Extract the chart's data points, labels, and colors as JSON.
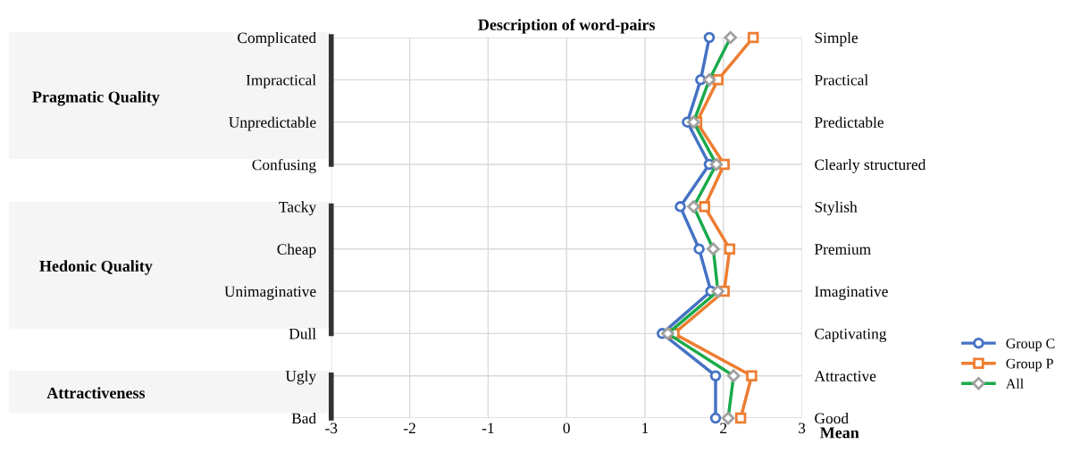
{
  "chart_data": {
    "type": "line",
    "orientation": "horizontal",
    "title": "Description of word-pairs",
    "xlabel": "Mean",
    "categories": [
      "Complicated",
      "Impractical",
      "Unpredictable",
      "Confusing",
      "Tacky",
      "Cheap",
      "Unimaginative",
      "Dull",
      "Ugly",
      "Bad"
    ],
    "y2_categories": [
      "Simple",
      "Practical",
      "Predictable",
      "Clearly structured",
      "Stylish",
      "Premium",
      "Imaginative",
      "Captivating",
      "Attractive",
      "Good"
    ],
    "series": [
      {
        "name": "Group C",
        "color": "#4472c4",
        "marker": "circle",
        "values": [
          1.82,
          1.71,
          1.54,
          1.82,
          1.45,
          1.69,
          1.84,
          1.22,
          1.9,
          1.9
        ]
      },
      {
        "name": "Group P",
        "color": "#ed7d31",
        "marker": "square",
        "values": [
          2.38,
          1.93,
          1.66,
          2.01,
          1.76,
          2.08,
          2.01,
          1.37,
          2.36,
          2.22
        ]
      },
      {
        "name": "All",
        "color": "#1aaa4a",
        "marker": "diamond",
        "values": [
          2.09,
          1.82,
          1.62,
          1.91,
          1.62,
          1.87,
          1.93,
          1.29,
          2.13,
          2.06
        ]
      }
    ],
    "xlim": [
      -3,
      3
    ],
    "xticks": [
      -3,
      -2,
      -1,
      0,
      1,
      2,
      3
    ],
    "annotations": [
      "Pragmatic Quality",
      "Hedonic Quality",
      "Attractiveness"
    ],
    "grid": true,
    "legend": "right"
  }
}
